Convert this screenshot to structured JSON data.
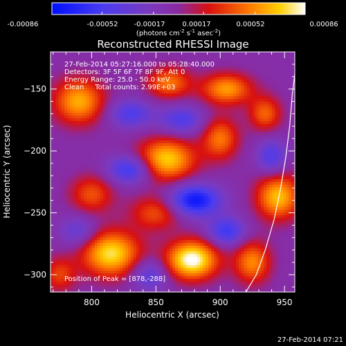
{
  "colorbar": {
    "tick_labels": [
      "-0.00086",
      "-0.00052",
      "-0.00017",
      "0.00017",
      "0.00052",
      "0.00086"
    ],
    "unit_main": "(photons cm",
    "unit_sup1": "-2",
    "unit_mid": " s",
    "unit_sup2": "-1",
    "unit_tail": " asec",
    "unit_sup3": "-2",
    "unit_close": ")"
  },
  "chart_data": {
    "type": "heatmap",
    "title": "Reconstructed RHESSI Image",
    "xlabel": "Heliocentric X (arcsec)",
    "ylabel": "Heliocentric Y (arcsec)",
    "xlim": [
      768,
      958
    ],
    "ylim": [
      -314,
      -120
    ],
    "x_ticks": [
      800,
      850,
      900,
      950
    ],
    "y_ticks": [
      -150,
      -200,
      -250,
      -300
    ],
    "x_tick_labels": [
      "800",
      "850",
      "900",
      "950"
    ],
    "y_tick_labels": [
      "−150",
      "−200",
      "−250",
      "−300"
    ],
    "value_range": [
      -0.00086,
      0.00086
    ],
    "colormap": "rainbow-blue-purple-red-yellow-white",
    "info_lines": [
      "27-Feb-2014 05:27:16.000 to 05:28:40.000",
      "Detectors: 3F 5F 6F 7F 8F 9F, Att 0",
      "Energy Range: 25.0 - 50.0 keV",
      "Clean     Total counts: 2.99E+03"
    ],
    "peak_label": "Position of Peak = [878,-288]",
    "peak": [
      878,
      -288
    ],
    "limb_curve": [
      [
        920,
        -314
      ],
      [
        928,
        -300
      ],
      [
        935,
        -280
      ],
      [
        942,
        -255
      ],
      [
        947,
        -230
      ],
      [
        951,
        -205
      ],
      [
        954,
        -180
      ],
      [
        956,
        -155
      ],
      [
        958,
        -138
      ]
    ],
    "sources": [
      {
        "x": 878,
        "y": -288,
        "amp": 1.0,
        "sx": 14,
        "sy": 11
      },
      {
        "x": 858,
        "y": -207,
        "amp": 0.8,
        "sx": 16,
        "sy": 12
      },
      {
        "x": 815,
        "y": -283,
        "amp": 0.85,
        "sx": 16,
        "sy": 13
      },
      {
        "x": 945,
        "y": -237,
        "amp": 0.75,
        "sx": 12,
        "sy": 13
      },
      {
        "x": 790,
        "y": -160,
        "amp": 0.7,
        "sx": 14,
        "sy": 13
      },
      {
        "x": 905,
        "y": -150,
        "amp": 0.65,
        "sx": 14,
        "sy": 9
      },
      {
        "x": 860,
        "y": -145,
        "amp": 0.55,
        "sx": 12,
        "sy": 9
      },
      {
        "x": 900,
        "y": -190,
        "amp": 0.55,
        "sx": 10,
        "sy": 12
      },
      {
        "x": 925,
        "y": -290,
        "amp": 0.6,
        "sx": 10,
        "sy": 12
      },
      {
        "x": 800,
        "y": -235,
        "amp": 0.45,
        "sx": 12,
        "sy": 11
      },
      {
        "x": 935,
        "y": -170,
        "amp": 0.5,
        "sx": 9,
        "sy": 10
      },
      {
        "x": 850,
        "y": -250,
        "amp": 0.45,
        "sx": 14,
        "sy": 10
      },
      {
        "x": 775,
        "y": -300,
        "amp": 0.4,
        "sx": 9,
        "sy": 10
      },
      {
        "x": 880,
        "y": -240,
        "amp": -0.8,
        "sx": 14,
        "sy": 9
      },
      {
        "x": 830,
        "y": -215,
        "amp": -0.6,
        "sx": 12,
        "sy": 8
      },
      {
        "x": 905,
        "y": -265,
        "amp": -0.55,
        "sx": 10,
        "sy": 8
      },
      {
        "x": 830,
        "y": -170,
        "amp": -0.45,
        "sx": 12,
        "sy": 8
      },
      {
        "x": 870,
        "y": -175,
        "amp": -0.45,
        "sx": 12,
        "sy": 8
      },
      {
        "x": 940,
        "y": -205,
        "amp": -0.45,
        "sx": 8,
        "sy": 10
      },
      {
        "x": 845,
        "y": -300,
        "amp": -0.4,
        "sx": 10,
        "sy": 9
      },
      {
        "x": 790,
        "y": -265,
        "amp": -0.35,
        "sx": 10,
        "sy": 9
      }
    ]
  },
  "footer": {
    "timestamp": "27-Feb-2014 07:21"
  }
}
